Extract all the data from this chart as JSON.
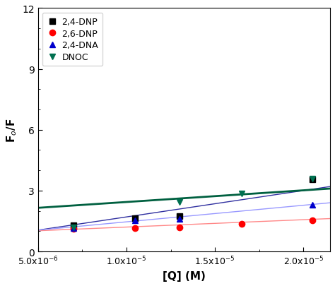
{
  "xlabel": "[Q] (M)",
  "ylabel": "F$_o$/F",
  "xlim": [
    5e-06,
    2.15e-05
  ],
  "ylim": [
    0,
    12
  ],
  "yticks": [
    0,
    3,
    6,
    9,
    12
  ],
  "xticks": [
    5e-06,
    1e-05,
    1.5e-05,
    2e-05
  ],
  "xtick_labels": [
    "5.0x10$^{-6}$",
    "1.0x10$^{-5}$",
    "1.5x10$^{-5}$",
    "2.0x10$^{-5}$"
  ],
  "series": [
    {
      "label": "2,4-DNP",
      "color": "#000000",
      "marker": "s",
      "markersize": 6,
      "x": [
        7e-06,
        1.05e-05,
        1.3e-05,
        2.05e-05
      ],
      "y": [
        1.3,
        1.65,
        1.75,
        3.55
      ],
      "fit_x": [
        5e-06,
        2.15e-05
      ],
      "fit_y": [
        1.05,
        3.2
      ],
      "fit_color": "#3030a0",
      "fit_linewidth": 1.0
    },
    {
      "label": "2,6-DNP",
      "color": "#ff0000",
      "marker": "o",
      "markersize": 6,
      "x": [
        7e-06,
        1.05e-05,
        1.3e-05,
        1.65e-05,
        2.05e-05
      ],
      "y": [
        1.1,
        1.15,
        1.2,
        1.35,
        1.55
      ],
      "fit_x": [
        5e-06,
        2.15e-05
      ],
      "fit_y": [
        1.02,
        1.62
      ],
      "fit_color": "#ff8888",
      "fit_linewidth": 1.0
    },
    {
      "label": "2,4-DNA",
      "color": "#0000cc",
      "marker": "^",
      "markersize": 6,
      "x": [
        7e-06,
        1.05e-05,
        1.3e-05,
        2.05e-05
      ],
      "y": [
        1.15,
        1.55,
        1.6,
        2.3
      ],
      "fit_x": [
        5e-06,
        2.15e-05
      ],
      "fit_y": [
        1.05,
        2.4
      ],
      "fit_color": "#9999ff",
      "fit_linewidth": 1.0
    },
    {
      "label": "DNOC",
      "color": "#007050",
      "marker": "v",
      "markersize": 6,
      "x": [
        7e-06,
        1.3e-05,
        1.65e-05,
        2.05e-05
      ],
      "y": [
        1.2,
        2.45,
        2.85,
        3.6
      ],
      "fit_x": [
        5e-06,
        2.15e-05
      ],
      "fit_y": [
        2.15,
        3.1
      ],
      "fit_color": "#006040",
      "fit_linewidth": 2.0
    }
  ],
  "legend_loc": "upper left",
  "background_color": "#ffffff"
}
